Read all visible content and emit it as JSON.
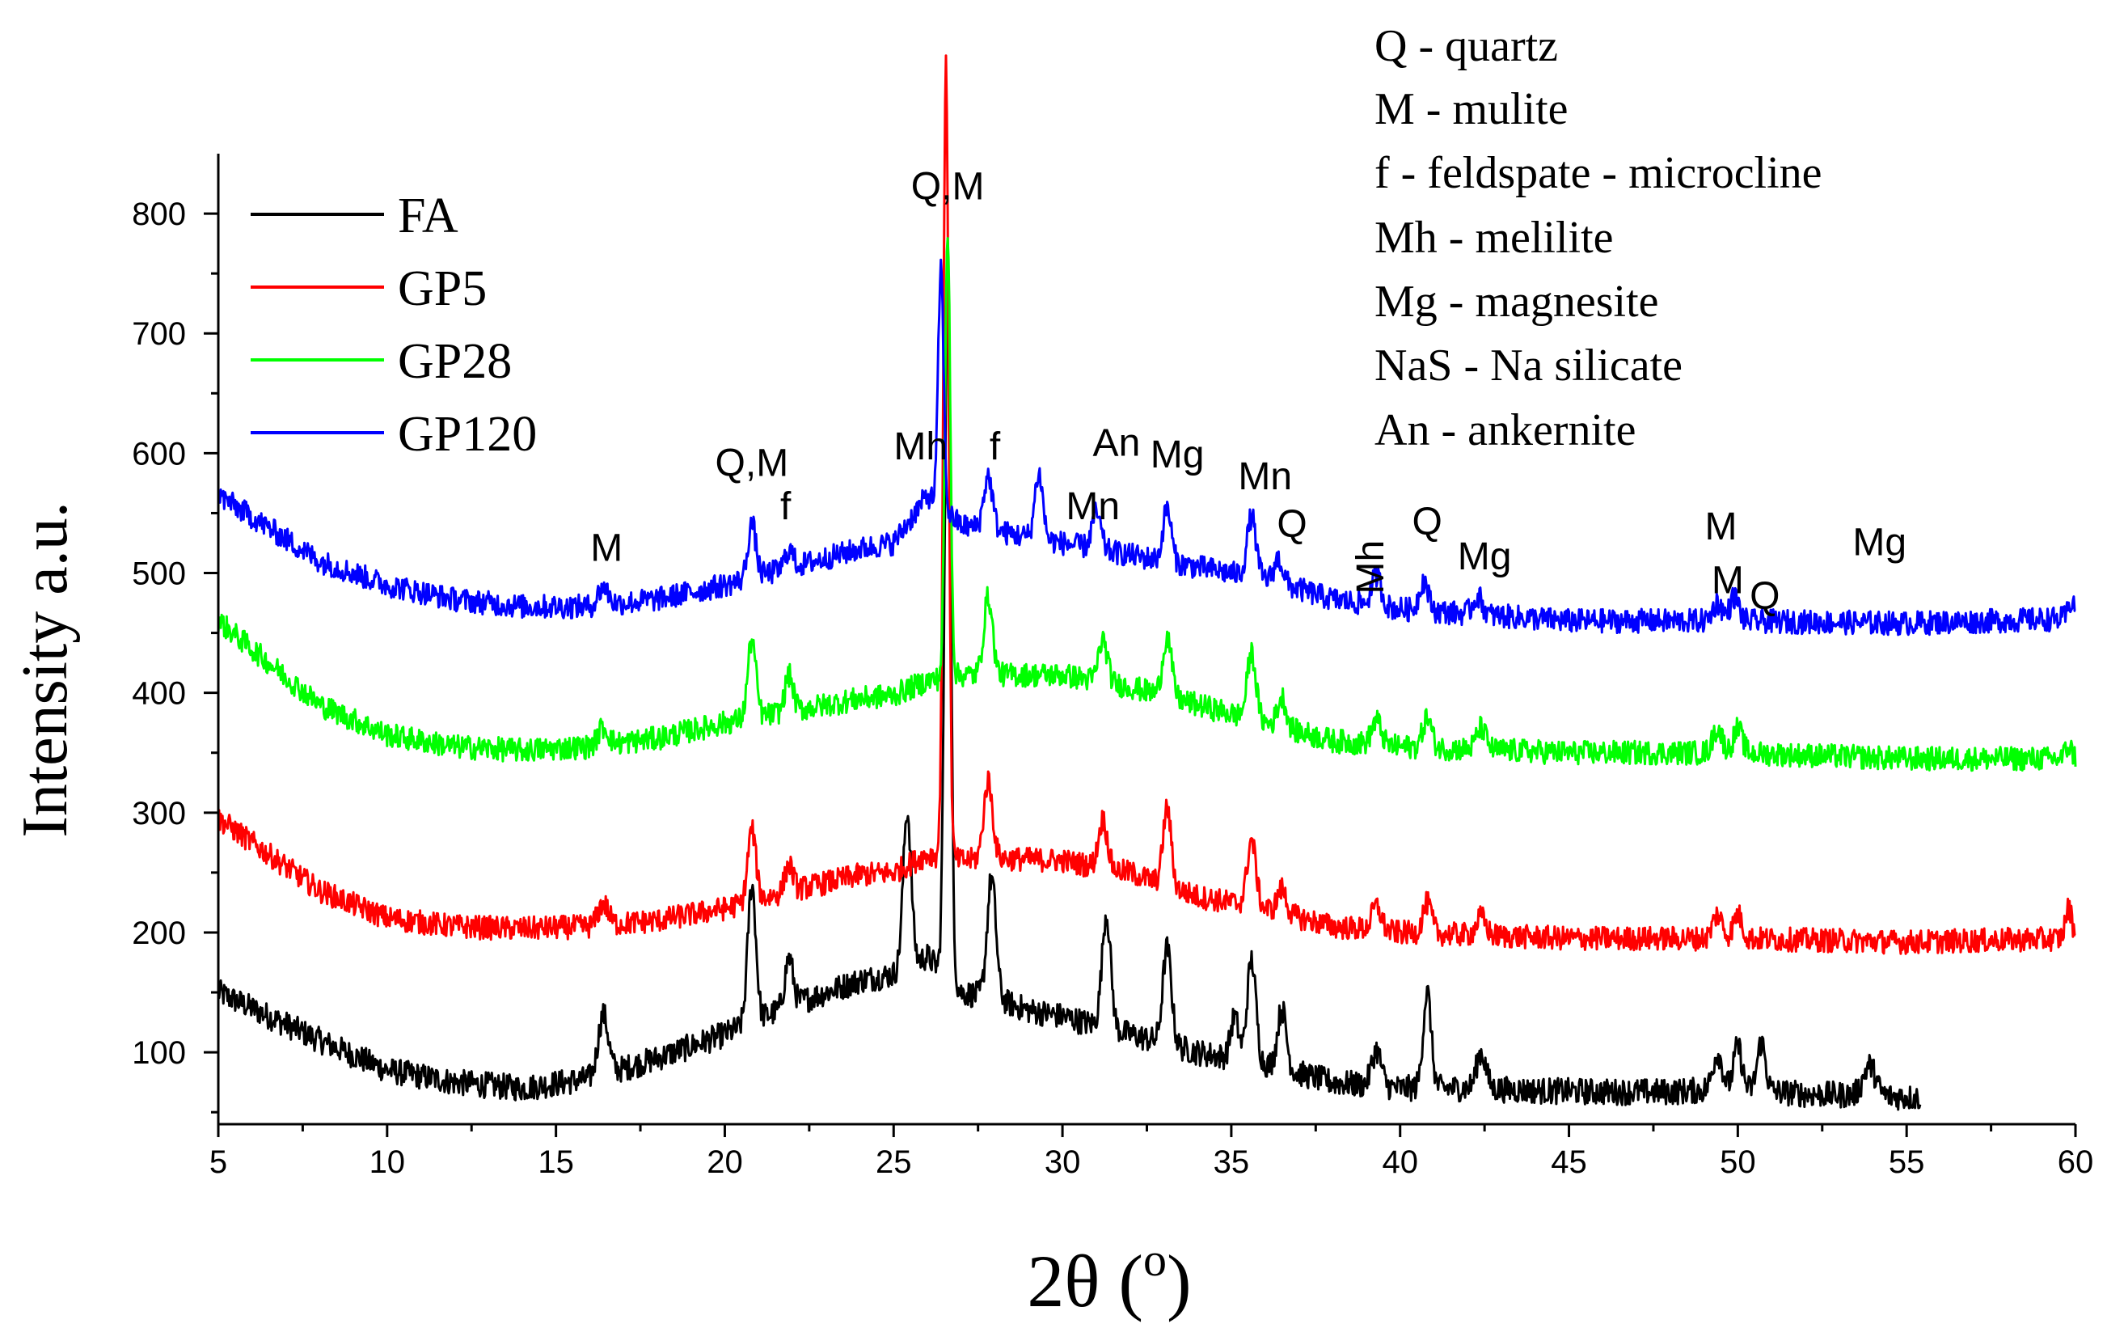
{
  "chart_data": {
    "type": "line",
    "title": "",
    "xlabel": "2θ (°)",
    "xlabel_main": "2θ (",
    "xlabel_super": "o",
    "xlabel_close": ")",
    "ylabel": "Intensity a.u.",
    "xlim": [
      5,
      60
    ],
    "ylim": [
      40,
      850
    ],
    "xticks": [
      5,
      10,
      15,
      20,
      25,
      30,
      35,
      40,
      45,
      50,
      55,
      60
    ],
    "yticks": [
      100,
      200,
      300,
      400,
      500,
      600,
      700,
      800
    ],
    "legend_position": "top-left",
    "series": [
      {
        "name": "FA",
        "color": "#000000",
        "baseline": [
          [
            5,
            150
          ],
          [
            8,
            110
          ],
          [
            10,
            85
          ],
          [
            12,
            75
          ],
          [
            14,
            70
          ],
          [
            16,
            78
          ],
          [
            18,
            95
          ],
          [
            20,
            115
          ],
          [
            22,
            140
          ],
          [
            24,
            160
          ],
          [
            25,
            165
          ],
          [
            26,
            180
          ],
          [
            27,
            150
          ],
          [
            28,
            145
          ],
          [
            29,
            135
          ],
          [
            30,
            130
          ],
          [
            32,
            115
          ],
          [
            34,
            100
          ],
          [
            36,
            90
          ],
          [
            38,
            75
          ],
          [
            40,
            70
          ],
          [
            42,
            70
          ],
          [
            44,
            68
          ],
          [
            46,
            67
          ],
          [
            48,
            67
          ],
          [
            50,
            70
          ],
          [
            52,
            65
          ],
          [
            54,
            64
          ],
          [
            55.4,
            62
          ]
        ],
        "peaks": [
          [
            16.4,
            50,
            0.15
          ],
          [
            20.8,
            115,
            0.12
          ],
          [
            21.9,
            40,
            0.12
          ],
          [
            25.4,
            130,
            0.12
          ],
          [
            26.6,
            580,
            0.09
          ],
          [
            27.9,
            100,
            0.13
          ],
          [
            31.3,
            95,
            0.13
          ],
          [
            33.1,
            80,
            0.13
          ],
          [
            35.6,
            85,
            0.13
          ],
          [
            35.1,
            35,
            0.12
          ],
          [
            36.5,
            50,
            0.13
          ],
          [
            39.3,
            30,
            0.14
          ],
          [
            40.8,
            80,
            0.12
          ],
          [
            42.4,
            30,
            0.14
          ],
          [
            49.4,
            30,
            0.14
          ],
          [
            50,
            35,
            0.12
          ],
          [
            50.7,
            40,
            0.12
          ],
          [
            53.9,
            25,
            0.18
          ]
        ],
        "noise": 11,
        "x_end": 55.4
      },
      {
        "name": "GP5",
        "color": "#ff0000",
        "baseline": [
          [
            5,
            295
          ],
          [
            8,
            235
          ],
          [
            10,
            212
          ],
          [
            12,
            205
          ],
          [
            14,
            203
          ],
          [
            16,
            205
          ],
          [
            18,
            210
          ],
          [
            20,
            220
          ],
          [
            22,
            235
          ],
          [
            24,
            248
          ],
          [
            25,
            250
          ],
          [
            26,
            265
          ],
          [
            27,
            260
          ],
          [
            28,
            262
          ],
          [
            30,
            260
          ],
          [
            32,
            250
          ],
          [
            34,
            230
          ],
          [
            36,
            220
          ],
          [
            38,
            205
          ],
          [
            40,
            200
          ],
          [
            45,
            195
          ],
          [
            50,
            195
          ],
          [
            55,
            192
          ],
          [
            60,
            195
          ]
        ],
        "peaks": [
          [
            16.4,
            18,
            0.15
          ],
          [
            20.8,
            60,
            0.12
          ],
          [
            21.9,
            22,
            0.12
          ],
          [
            26.55,
            660,
            0.08
          ],
          [
            27.8,
            65,
            0.13
          ],
          [
            31.2,
            40,
            0.13
          ],
          [
            33.1,
            65,
            0.12
          ],
          [
            35.6,
            55,
            0.13
          ],
          [
            36.5,
            20,
            0.13
          ],
          [
            39.3,
            20,
            0.14
          ],
          [
            40.8,
            25,
            0.13
          ],
          [
            42.4,
            15,
            0.14
          ],
          [
            49.4,
            20,
            0.14
          ],
          [
            50,
            20,
            0.13
          ],
          [
            59.8,
            25,
            0.1
          ]
        ],
        "noise": 10,
        "x_end": 60
      },
      {
        "name": "GP28",
        "color": "#00ff00",
        "baseline": [
          [
            5,
            460
          ],
          [
            8,
            390
          ],
          [
            10,
            365
          ],
          [
            12,
            355
          ],
          [
            14,
            352
          ],
          [
            16,
            355
          ],
          [
            18,
            362
          ],
          [
            20,
            375
          ],
          [
            22,
            385
          ],
          [
            24,
            395
          ],
          [
            25,
            398
          ],
          [
            26,
            410
          ],
          [
            27,
            415
          ],
          [
            28,
            415
          ],
          [
            30,
            415
          ],
          [
            32,
            405
          ],
          [
            34,
            390
          ],
          [
            36,
            375
          ],
          [
            38,
            360
          ],
          [
            40,
            355
          ],
          [
            45,
            350
          ],
          [
            50,
            350
          ],
          [
            55,
            345
          ],
          [
            60,
            345
          ]
        ],
        "peaks": [
          [
            16.4,
            15,
            0.15
          ],
          [
            20.8,
            65,
            0.12
          ],
          [
            21.9,
            30,
            0.12
          ],
          [
            26.6,
            370,
            0.08
          ],
          [
            27.8,
            65,
            0.13
          ],
          [
            31.2,
            35,
            0.13
          ],
          [
            33.1,
            50,
            0.13
          ],
          [
            35.6,
            55,
            0.13
          ],
          [
            36.5,
            25,
            0.13
          ],
          [
            39.3,
            20,
            0.14
          ],
          [
            40.8,
            25,
            0.13
          ],
          [
            42.4,
            18,
            0.14
          ],
          [
            49.4,
            20,
            0.14
          ],
          [
            50,
            20,
            0.13
          ],
          [
            59.8,
            10,
            0.1
          ]
        ],
        "noise": 10,
        "x_end": 60
      },
      {
        "name": "GP120",
        "color": "#0000ff",
        "baseline": [
          [
            5,
            565
          ],
          [
            8,
            510
          ],
          [
            10,
            490
          ],
          [
            12,
            478
          ],
          [
            14,
            472
          ],
          [
            16,
            472
          ],
          [
            18,
            478
          ],
          [
            20,
            490
          ],
          [
            22,
            505
          ],
          [
            24,
            520
          ],
          [
            25,
            525
          ],
          [
            26,
            565
          ],
          [
            27,
            540
          ],
          [
            28,
            535
          ],
          [
            30,
            525
          ],
          [
            32,
            515
          ],
          [
            34,
            505
          ],
          [
            36,
            495
          ],
          [
            38,
            478
          ],
          [
            40,
            470
          ],
          [
            45,
            460
          ],
          [
            50,
            460
          ],
          [
            55,
            458
          ],
          [
            60,
            462
          ]
        ],
        "peaks": [
          [
            16.4,
            15,
            0.15
          ],
          [
            20.8,
            45,
            0.12
          ],
          [
            21.9,
            15,
            0.12
          ],
          [
            26.4,
            200,
            0.08
          ],
          [
            27.8,
            45,
            0.13
          ],
          [
            29.3,
            55,
            0.12
          ],
          [
            31,
            30,
            0.13
          ],
          [
            33.1,
            45,
            0.12
          ],
          [
            35.6,
            50,
            0.13
          ],
          [
            36.4,
            20,
            0.13
          ],
          [
            39.3,
            25,
            0.14
          ],
          [
            40.7,
            25,
            0.13
          ],
          [
            42.3,
            15,
            0.14
          ],
          [
            49.4,
            15,
            0.14
          ],
          [
            49.9,
            20,
            0.13
          ],
          [
            59.9,
            15,
            0.1
          ]
        ],
        "noise": 10,
        "x_end": 60
      }
    ],
    "peak_labels": [
      {
        "text": "Q,M",
        "x": 26.6,
        "y": 812
      },
      {
        "text": "M",
        "x": 16.5,
        "y": 510
      },
      {
        "text": "Q,M",
        "x": 20.8,
        "y": 581
      },
      {
        "text": "f",
        "x": 21.8,
        "y": 545
      },
      {
        "text": "Mh",
        "x": 25.8,
        "y": 595
      },
      {
        "text": "f",
        "x": 28.0,
        "y": 595
      },
      {
        "text": "An",
        "x": 31.6,
        "y": 598
      },
      {
        "text": "Mg",
        "x": 33.4,
        "y": 588
      },
      {
        "text": "Mn",
        "x": 30.9,
        "y": 545
      },
      {
        "text": "Mn",
        "x": 36.0,
        "y": 570
      },
      {
        "text": "Q",
        "x": 36.8,
        "y": 530
      },
      {
        "text": "Q",
        "x": 40.8,
        "y": 532
      },
      {
        "text": "Mg",
        "x": 42.5,
        "y": 503
      },
      {
        "text": "M",
        "x": 49.5,
        "y": 528
      },
      {
        "text": "M",
        "x": 49.7,
        "y": 483
      },
      {
        "text": "Q",
        "x": 50.8,
        "y": 470
      },
      {
        "text": "Mg",
        "x": 54.2,
        "y": 515
      }
    ],
    "rotated_label": {
      "text": "Mh",
      "x": 39.5,
      "y": 505
    },
    "phase_key": [
      "Q - quartz",
      "M - mulite",
      "f - feldspate - microcline",
      "Mh - melilite",
      "Mg - magnesite",
      "NaS - Na silicate",
      "An - ankernite"
    ]
  }
}
